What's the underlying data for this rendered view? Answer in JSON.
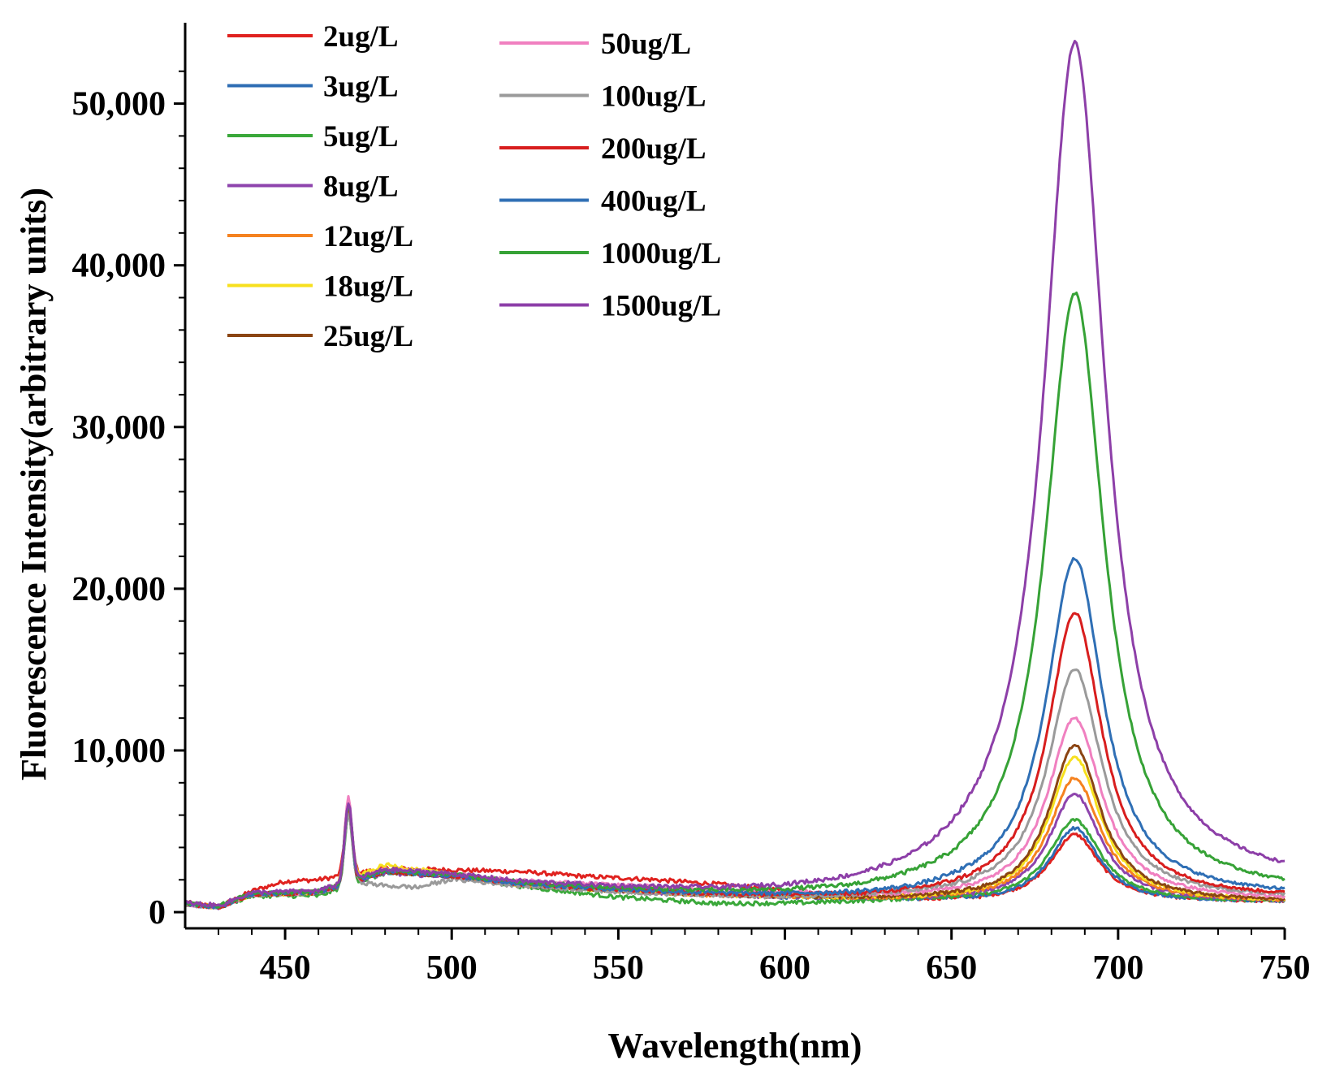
{
  "chart_data": {
    "type": "line",
    "title": "",
    "xlabel": "Wavelength(nm)",
    "ylabel": "Fluorescence Intensity(arbitrary units)",
    "xlim": [
      420,
      750
    ],
    "ylim": [
      -1000,
      55000
    ],
    "x_ticks": [
      450,
      500,
      550,
      600,
      650,
      700,
      750
    ],
    "x_tick_labels": [
      "450",
      "500",
      "550",
      "600",
      "650",
      "700",
      "750"
    ],
    "y_ticks": [
      0,
      10000,
      20000,
      30000,
      40000,
      50000
    ],
    "y_tick_labels": [
      "0",
      "10,000",
      "20,000",
      "30,000",
      "40,000",
      "50,000"
    ],
    "legend_position": "top-left",
    "series": [
      {
        "name": "2ug/L",
        "color": "#e0221f",
        "baseline": [
          [
            420,
            600
          ],
          [
            430,
            300
          ],
          [
            440,
            1300
          ],
          [
            450,
            1900
          ],
          [
            460,
            2000
          ],
          [
            480,
            2700
          ],
          [
            500,
            2600
          ],
          [
            520,
            2500
          ],
          [
            540,
            2200
          ],
          [
            560,
            2000
          ],
          [
            580,
            1700
          ],
          [
            600,
            1300
          ],
          [
            620,
            900
          ],
          [
            640,
            700
          ],
          [
            650,
            700
          ],
          [
            660,
            600
          ]
        ],
        "peak_amplitude": 4200,
        "peak_width": 10,
        "tail": 400,
        "spike": 4000
      },
      {
        "name": "3ug/L",
        "color": "#2e6db4",
        "baseline": [
          [
            420,
            500
          ],
          [
            430,
            300
          ],
          [
            440,
            1100
          ],
          [
            460,
            1200
          ],
          [
            480,
            2500
          ],
          [
            500,
            2200
          ],
          [
            520,
            1800
          ],
          [
            550,
            1400
          ],
          [
            580,
            1100
          ],
          [
            600,
            900
          ],
          [
            620,
            800
          ],
          [
            640,
            700
          ],
          [
            650,
            700
          ],
          [
            660,
            600
          ]
        ],
        "peak_amplitude": 4600,
        "peak_width": 10,
        "tail": 500,
        "spike": 4300
      },
      {
        "name": "5ug/L",
        "color": "#3aa83a",
        "baseline": [
          [
            420,
            500
          ],
          [
            430,
            300
          ],
          [
            440,
            1000
          ],
          [
            460,
            1000
          ],
          [
            480,
            2400
          ],
          [
            500,
            2300
          ],
          [
            520,
            1600
          ],
          [
            550,
            900
          ],
          [
            580,
            500
          ],
          [
            600,
            500
          ],
          [
            620,
            600
          ],
          [
            640,
            700
          ],
          [
            650,
            700
          ],
          [
            660,
            600
          ]
        ],
        "peak_amplitude": 5100,
        "peak_width": 10.5,
        "tail": 400,
        "spike": 4400
      },
      {
        "name": "8ug/L",
        "color": "#8e44ad",
        "baseline": [
          [
            420,
            500
          ],
          [
            430,
            300
          ],
          [
            440,
            1100
          ],
          [
            460,
            1200
          ],
          [
            480,
            2400
          ],
          [
            500,
            2200
          ],
          [
            520,
            1700
          ],
          [
            550,
            1300
          ],
          [
            580,
            1000
          ],
          [
            600,
            900
          ],
          [
            620,
            800
          ],
          [
            640,
            700
          ],
          [
            650,
            700
          ],
          [
            660,
            600
          ]
        ],
        "peak_amplitude": 6700,
        "peak_width": 10.5,
        "tail": 600,
        "spike": 4500
      },
      {
        "name": "12ug/L",
        "color": "#f58220",
        "baseline": [
          [
            420,
            500
          ],
          [
            430,
            300
          ],
          [
            440,
            1100
          ],
          [
            460,
            1200
          ],
          [
            480,
            2600
          ],
          [
            500,
            2200
          ],
          [
            520,
            1700
          ],
          [
            550,
            1300
          ],
          [
            580,
            1000
          ],
          [
            600,
            900
          ],
          [
            620,
            800
          ],
          [
            640,
            700
          ],
          [
            650,
            700
          ],
          [
            660,
            600
          ]
        ],
        "peak_amplitude": 7700,
        "peak_width": 10.5,
        "tail": 500,
        "spike": 4600
      },
      {
        "name": "18ug/L",
        "color": "#f7e01e",
        "baseline": [
          [
            420,
            500
          ],
          [
            430,
            300
          ],
          [
            440,
            1100
          ],
          [
            460,
            1200
          ],
          [
            480,
            2900
          ],
          [
            500,
            2300
          ],
          [
            520,
            1700
          ],
          [
            550,
            1300
          ],
          [
            580,
            1000
          ],
          [
            600,
            900
          ],
          [
            620,
            800
          ],
          [
            640,
            700
          ],
          [
            650,
            700
          ],
          [
            660,
            600
          ]
        ],
        "peak_amplitude": 9000,
        "peak_width": 10.5,
        "tail": 500,
        "spike": 4700
      },
      {
        "name": "25ug/L",
        "color": "#8b4513",
        "baseline": [
          [
            420,
            500
          ],
          [
            430,
            300
          ],
          [
            440,
            1100
          ],
          [
            460,
            1200
          ],
          [
            480,
            2500
          ],
          [
            500,
            2200
          ],
          [
            520,
            1700
          ],
          [
            550,
            1300
          ],
          [
            580,
            1000
          ],
          [
            600,
            900
          ],
          [
            620,
            800
          ],
          [
            640,
            700
          ],
          [
            650,
            700
          ],
          [
            660,
            600
          ]
        ],
        "peak_amplitude": 9700,
        "peak_width": 10.5,
        "tail": 500,
        "spike": 4800
      },
      {
        "name": "50ug/L",
        "color": "#f080c0",
        "baseline": [
          [
            420,
            500
          ],
          [
            430,
            300
          ],
          [
            440,
            1100
          ],
          [
            460,
            1200
          ],
          [
            480,
            2600
          ],
          [
            500,
            2300
          ],
          [
            520,
            1900
          ],
          [
            550,
            1600
          ],
          [
            580,
            1300
          ],
          [
            600,
            1100
          ],
          [
            620,
            900
          ],
          [
            640,
            800
          ],
          [
            650,
            800
          ],
          [
            660,
            700
          ]
        ],
        "peak_amplitude": 11300,
        "peak_width": 11,
        "tail": 700,
        "spike": 5200
      },
      {
        "name": "100ug/L",
        "color": "#9a9a9a",
        "baseline": [
          [
            420,
            500
          ],
          [
            430,
            300
          ],
          [
            440,
            1100
          ],
          [
            460,
            1200
          ],
          [
            470,
            1900
          ],
          [
            480,
            1600
          ],
          [
            490,
            1500
          ],
          [
            500,
            2000
          ],
          [
            520,
            1600
          ],
          [
            550,
            1200
          ],
          [
            580,
            900
          ],
          [
            600,
            800
          ],
          [
            620,
            800
          ],
          [
            640,
            800
          ],
          [
            650,
            800
          ],
          [
            660,
            800
          ]
        ],
        "peak_amplitude": 14200,
        "peak_width": 11,
        "tail": 700,
        "spike": 4200
      },
      {
        "name": "200ug/L",
        "color": "#d81e1e",
        "baseline": [
          [
            420,
            500
          ],
          [
            430,
            300
          ],
          [
            440,
            1100
          ],
          [
            460,
            1200
          ],
          [
            480,
            2500
          ],
          [
            500,
            2200
          ],
          [
            520,
            1700
          ],
          [
            550,
            1300
          ],
          [
            580,
            1000
          ],
          [
            600,
            900
          ],
          [
            620,
            800
          ],
          [
            640,
            800
          ],
          [
            650,
            800
          ],
          [
            660,
            800
          ]
        ],
        "peak_amplitude": 17700,
        "peak_width": 11,
        "tail": 900,
        "spike": 4800
      },
      {
        "name": "400ug/L",
        "color": "#2f6fb5",
        "baseline": [
          [
            420,
            500
          ],
          [
            430,
            300
          ],
          [
            440,
            1100
          ],
          [
            460,
            1200
          ],
          [
            480,
            2500
          ],
          [
            500,
            2200
          ],
          [
            520,
            1700
          ],
          [
            550,
            1300
          ],
          [
            580,
            1000
          ],
          [
            600,
            900
          ],
          [
            620,
            800
          ],
          [
            640,
            800
          ],
          [
            650,
            900
          ],
          [
            660,
            900
          ]
        ],
        "peak_amplitude": 21000,
        "peak_width": 11.5,
        "tail": 1200,
        "spike": 4800
      },
      {
        "name": "1000ug/L",
        "color": "#36a236",
        "baseline": [
          [
            420,
            500
          ],
          [
            430,
            300
          ],
          [
            440,
            1100
          ],
          [
            460,
            1200
          ],
          [
            480,
            2500
          ],
          [
            500,
            2200
          ],
          [
            520,
            1700
          ],
          [
            550,
            1300
          ],
          [
            580,
            1000
          ],
          [
            600,
            900
          ],
          [
            620,
            800
          ],
          [
            640,
            900
          ],
          [
            650,
            900
          ],
          [
            660,
            1000
          ]
        ],
        "peak_amplitude": 37300,
        "peak_width": 12,
        "tail": 2200,
        "spike": 4800
      },
      {
        "name": "1500ug/L",
        "color": "#8d3fa8",
        "baseline": [
          [
            420,
            500
          ],
          [
            430,
            300
          ],
          [
            440,
            1100
          ],
          [
            460,
            1200
          ],
          [
            480,
            2500
          ],
          [
            500,
            2200
          ],
          [
            520,
            1700
          ],
          [
            550,
            1300
          ],
          [
            580,
            1000
          ],
          [
            600,
            900
          ],
          [
            620,
            900
          ],
          [
            640,
            1100
          ],
          [
            650,
            1300
          ],
          [
            660,
            1500
          ]
        ],
        "peak_amplitude": 52300,
        "peak_width": 12.5,
        "tail": 3000,
        "spike": 4800
      }
    ],
    "peak_center": 687,
    "spike_center": 469
  }
}
